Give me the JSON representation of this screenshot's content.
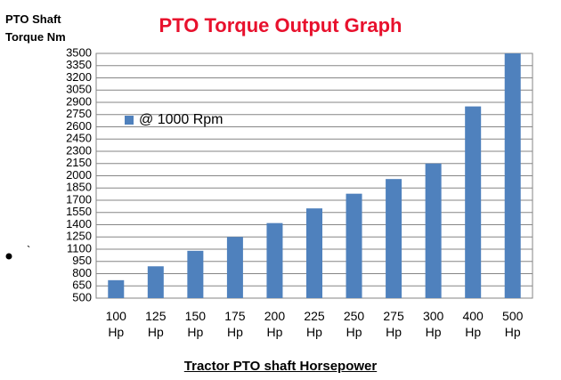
{
  "chart_data": {
    "type": "bar",
    "title": "PTO Torque Output Graph",
    "y_axis_label": "PTO Shaft Torque Nm",
    "x_axis_label": "Tractor PTO shaft Horsepower",
    "annotation": "`",
    "categories": [
      "100 Hp",
      "125 Hp",
      "150 Hp",
      "175 Hp",
      "200 Hp",
      "225 Hp",
      "250 Hp",
      "275 Hp",
      "300 Hp",
      "400 Hp",
      "500 Hp"
    ],
    "series": [
      {
        "name": "@ 1000 Rpm",
        "color": "#4f81bd",
        "values": [
          720,
          890,
          1080,
          1250,
          1420,
          1600,
          1780,
          1960,
          2150,
          2850,
          3500
        ]
      }
    ],
    "ylim": [
      500,
      3500
    ],
    "yticks": [
      500,
      650,
      800,
      950,
      1100,
      1250,
      1400,
      1550,
      1700,
      1850,
      2000,
      2150,
      2300,
      2450,
      2600,
      2750,
      2900,
      3050,
      3200,
      3350,
      3500
    ],
    "grid": true,
    "legend": "top-left"
  }
}
